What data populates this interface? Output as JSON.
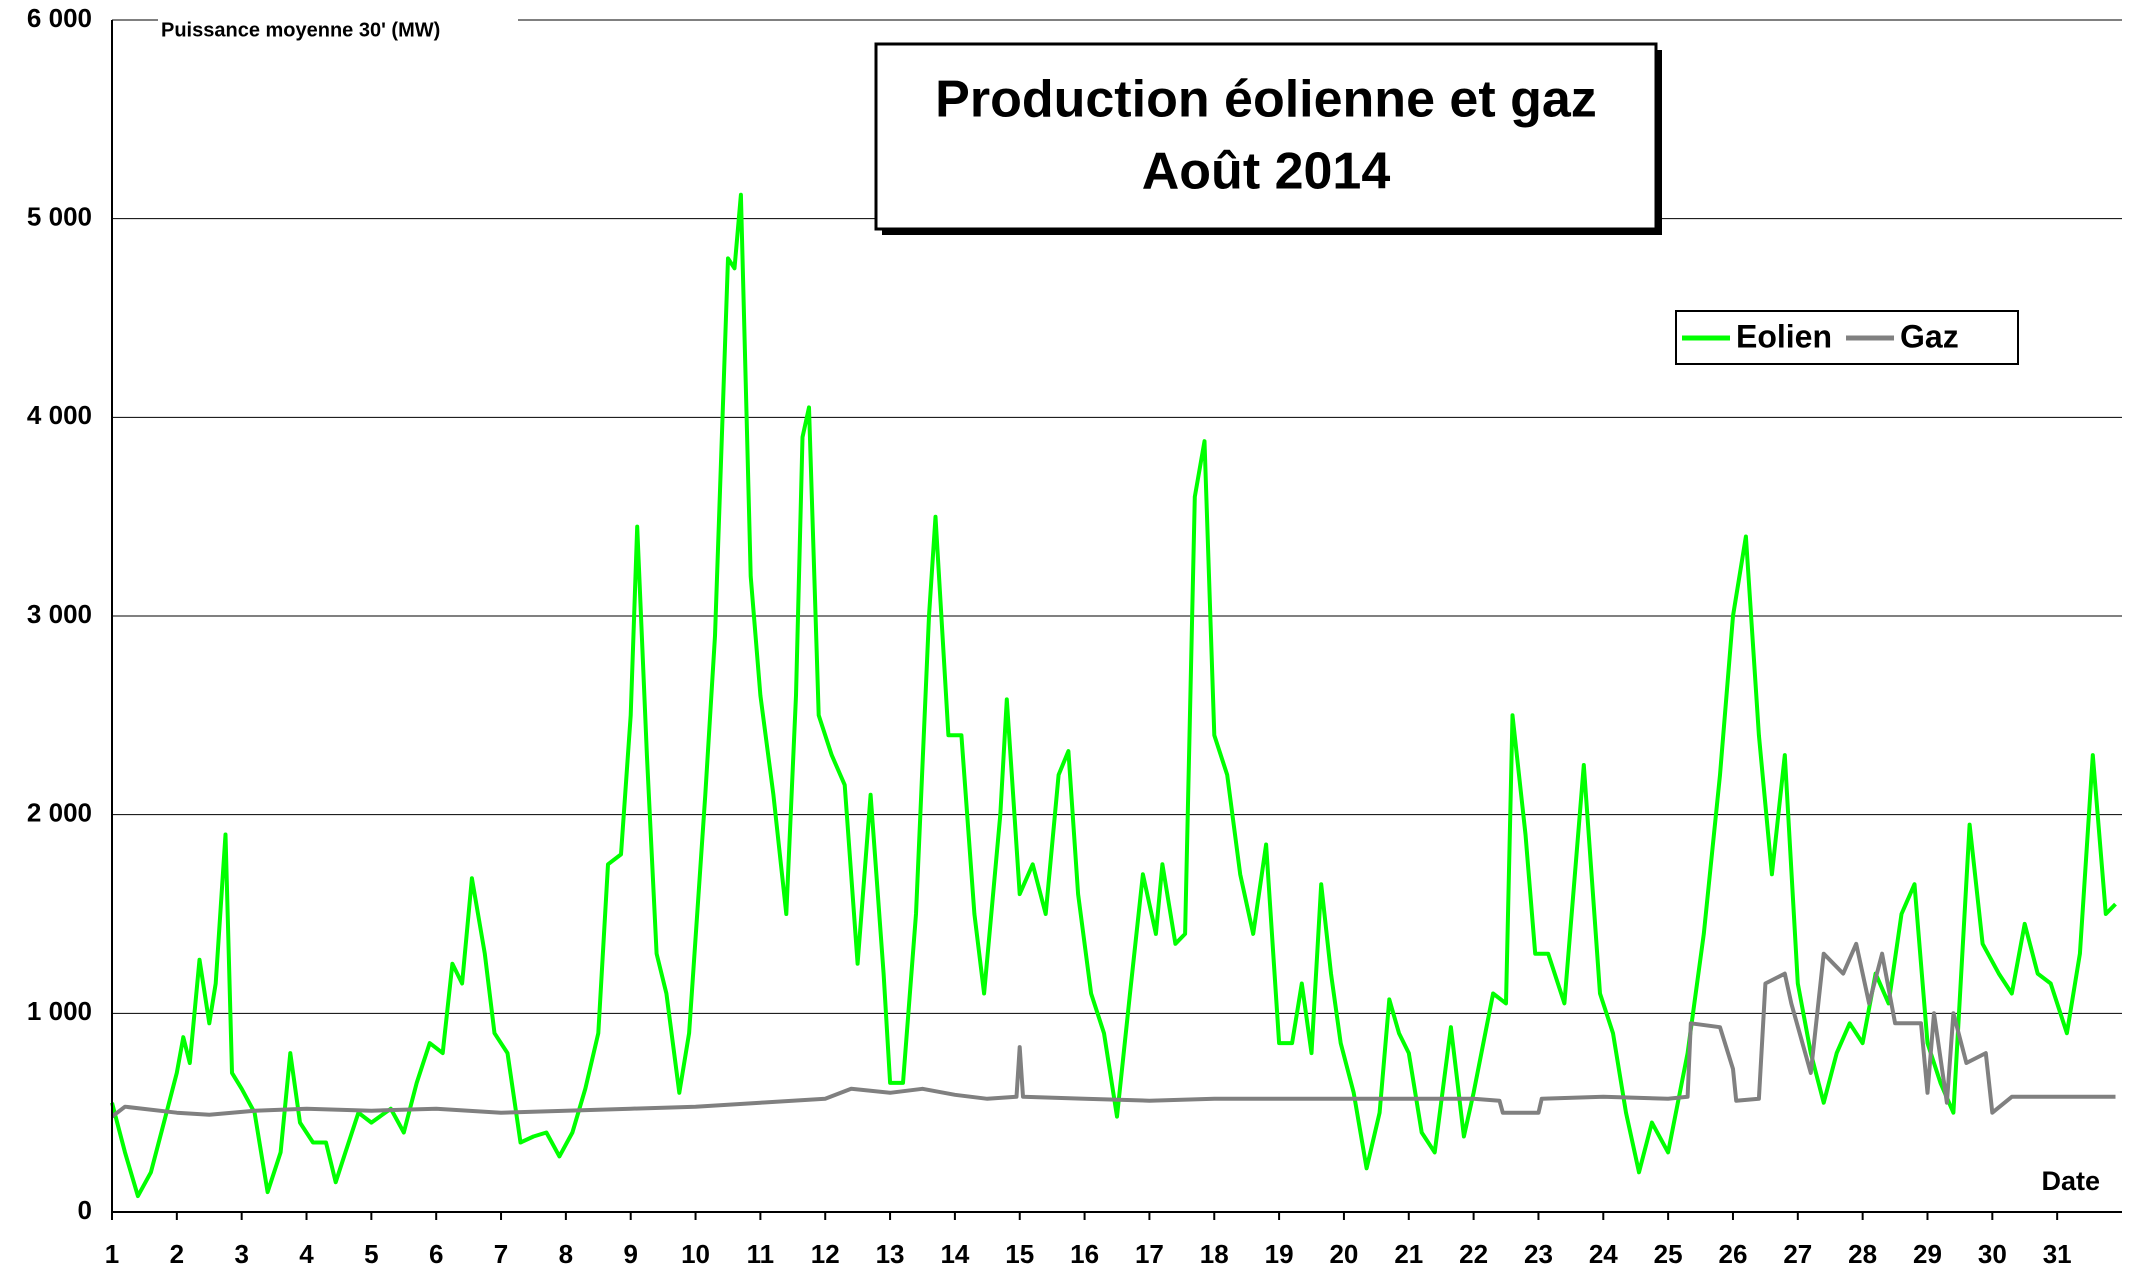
{
  "chart_data": {
    "type": "line",
    "title": "Production éolienne et gaz",
    "subtitle": "Août 2014",
    "y_label": "Puissance moyenne 30' (MW)",
    "x_label": "Date",
    "xlim": [
      1,
      32
    ],
    "xticks": [
      1,
      2,
      3,
      4,
      5,
      6,
      7,
      8,
      9,
      10,
      11,
      12,
      13,
      14,
      15,
      16,
      17,
      18,
      19,
      20,
      21,
      22,
      23,
      24,
      25,
      26,
      27,
      28,
      29,
      30,
      31
    ],
    "ylim": [
      0,
      6000
    ],
    "yticks": [
      0,
      {
        "value": 1000,
        "label": "1 000"
      },
      {
        "value": 2000,
        "label": "2 000"
      },
      {
        "value": 3000,
        "label": "3 000"
      },
      {
        "value": 4000,
        "label": "4 000"
      },
      {
        "value": 5000,
        "label": "5 000"
      },
      {
        "value": 6000,
        "label": "6 000"
      }
    ],
    "grid": true,
    "legend": "upper right",
    "series": [
      {
        "name": "Eolien",
        "color": "#00ff00",
        "x": [
          1.0,
          1.2,
          1.4,
          1.6,
          1.8,
          2.0,
          2.1,
          2.2,
          2.35,
          2.5,
          2.6,
          2.75,
          2.85,
          3.0,
          3.2,
          3.4,
          3.6,
          3.75,
          3.9,
          4.1,
          4.3,
          4.45,
          4.6,
          4.8,
          5.0,
          5.3,
          5.5,
          5.7,
          5.9,
          6.1,
          6.25,
          6.4,
          6.55,
          6.75,
          6.9,
          7.1,
          7.3,
          7.5,
          7.7,
          7.9,
          8.1,
          8.3,
          8.5,
          8.65,
          8.85,
          9.0,
          9.1,
          9.25,
          9.4,
          9.55,
          9.75,
          9.9,
          10.15,
          10.3,
          10.5,
          10.6,
          10.7,
          10.85,
          11.0,
          11.2,
          11.4,
          11.55,
          11.65,
          11.75,
          11.9,
          12.1,
          12.3,
          12.5,
          12.7,
          12.9,
          13.0,
          13.2,
          13.4,
          13.6,
          13.7,
          13.9,
          14.1,
          14.3,
          14.45,
          14.7,
          14.8,
          15.0,
          15.2,
          15.4,
          15.6,
          15.75,
          15.9,
          16.1,
          16.3,
          16.5,
          16.7,
          16.9,
          17.1,
          17.2,
          17.4,
          17.55,
          17.7,
          17.85,
          18.0,
          18.2,
          18.4,
          18.6,
          18.8,
          19.0,
          19.2,
          19.35,
          19.5,
          19.65,
          19.8,
          19.95,
          20.15,
          20.35,
          20.55,
          20.7,
          20.85,
          21.0,
          21.2,
          21.4,
          21.65,
          21.85,
          22.0,
          22.3,
          22.5,
          22.6,
          22.8,
          22.95,
          23.15,
          23.4,
          23.7,
          23.95,
          24.15,
          24.35,
          24.55,
          24.75,
          25.0,
          25.3,
          25.55,
          25.8,
          26.0,
          26.2,
          26.4,
          26.6,
          26.8,
          27.0,
          27.2,
          27.4,
          27.6,
          27.8,
          28.0,
          28.2,
          28.4,
          28.6,
          28.8,
          29.0,
          29.2,
          29.4,
          29.65,
          29.85,
          30.1,
          30.3,
          30.5,
          30.7,
          30.9,
          31.15,
          31.35,
          31.55,
          31.75,
          31.9
        ],
        "values": [
          550,
          300,
          80,
          200,
          450,
          700,
          880,
          750,
          1270,
          950,
          1150,
          1900,
          700,
          620,
          500,
          100,
          300,
          800,
          450,
          350,
          350,
          150,
          300,
          500,
          450,
          520,
          400,
          650,
          850,
          800,
          1250,
          1150,
          1680,
          1300,
          900,
          800,
          350,
          380,
          400,
          280,
          400,
          620,
          900,
          1750,
          1800,
          2500,
          3450,
          2300,
          1300,
          1100,
          600,
          900,
          2100,
          2900,
          4800,
          4750,
          5120,
          3200,
          2600,
          2100,
          1500,
          2600,
          3900,
          4050,
          2500,
          2300,
          2150,
          1250,
          2100,
          1200,
          650,
          650,
          1500,
          3000,
          3500,
          2400,
          2400,
          1500,
          1100,
          2000,
          2580,
          1600,
          1750,
          1500,
          2200,
          2320,
          1600,
          1100,
          900,
          480,
          1100,
          1700,
          1400,
          1750,
          1350,
          1400,
          3600,
          3880,
          2400,
          2200,
          1700,
          1400,
          1850,
          850,
          850,
          1150,
          800,
          1650,
          1200,
          850,
          600,
          220,
          500,
          1070,
          900,
          800,
          400,
          300,
          930,
          380,
          600,
          1100,
          1050,
          2500,
          1900,
          1300,
          1300,
          1050,
          2250,
          1100,
          900,
          500,
          200,
          450,
          300,
          800,
          1400,
          2200,
          3000,
          3400,
          2400,
          1700,
          2300,
          1150,
          800,
          550,
          800,
          950,
          850,
          1200,
          1050,
          1500,
          1650,
          850,
          650,
          500,
          1950,
          1350,
          1200,
          1100,
          1450,
          1200,
          1150,
          900,
          1300,
          2300,
          1500,
          1550
        ]
      },
      {
        "name": "Gaz",
        "color": "#808080",
        "x": [
          1.0,
          1.2,
          2.0,
          2.5,
          3.2,
          4.0,
          5.0,
          6.0,
          7.0,
          8.0,
          9.0,
          10.0,
          11.0,
          12.0,
          12.4,
          13.0,
          13.5,
          14.0,
          14.5,
          14.95,
          15.0,
          15.05,
          16.0,
          17.0,
          18.0,
          19.0,
          20.0,
          21.0,
          22.0,
          22.4,
          22.45,
          23.0,
          23.05,
          24.0,
          25.0,
          25.3,
          25.35,
          25.8,
          26.0,
          26.05,
          26.4,
          26.5,
          26.8,
          26.9,
          27.2,
          27.4,
          27.7,
          27.9,
          28.1,
          28.3,
          28.5,
          28.9,
          29.0,
          29.1,
          29.3,
          29.4,
          29.6,
          29.9,
          30.0,
          30.3,
          31.0,
          31.9
        ],
        "values": [
          480,
          530,
          500,
          490,
          510,
          520,
          510,
          520,
          500,
          510,
          520,
          530,
          550,
          570,
          620,
          600,
          620,
          590,
          570,
          580,
          830,
          580,
          570,
          560,
          570,
          570,
          570,
          570,
          570,
          560,
          500,
          500,
          570,
          580,
          570,
          580,
          950,
          930,
          720,
          560,
          570,
          1150,
          1200,
          1050,
          700,
          1300,
          1200,
          1350,
          1050,
          1300,
          950,
          950,
          600,
          1000,
          550,
          1000,
          750,
          800,
          500,
          580,
          580,
          580
        ]
      }
    ]
  }
}
